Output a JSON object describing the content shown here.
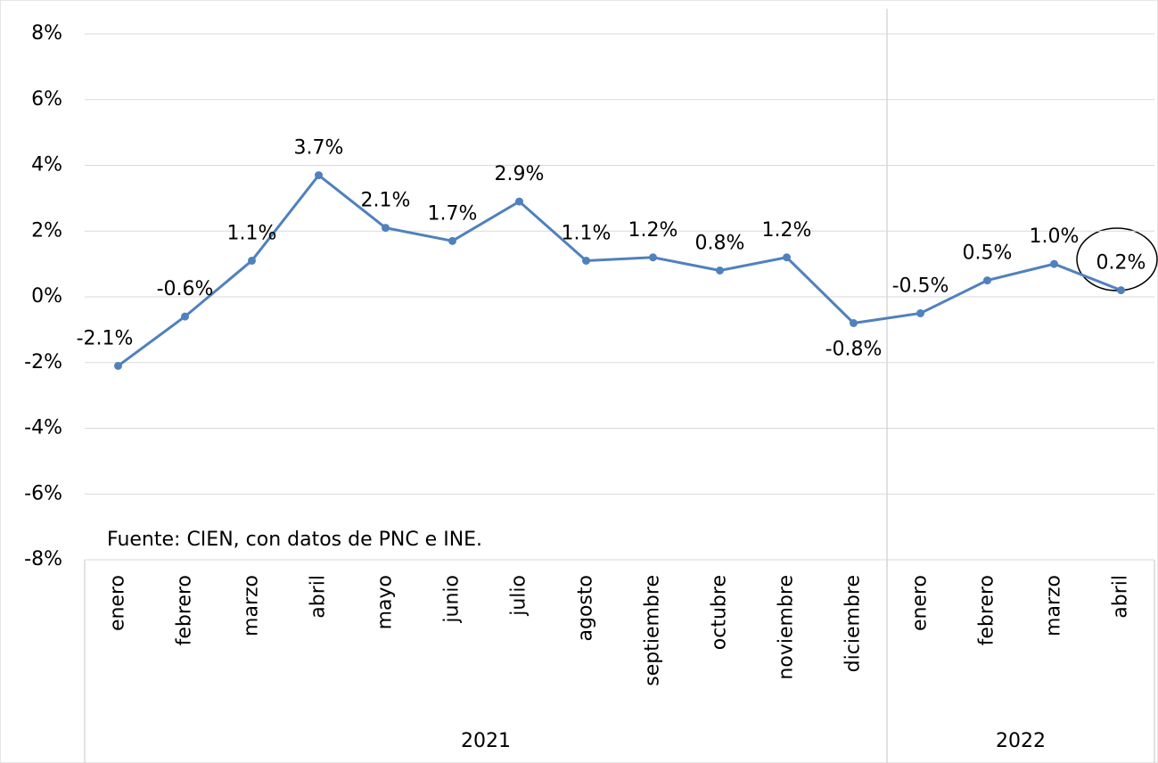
{
  "chart_data": {
    "type": "line",
    "categories": [
      "enero",
      "febrero",
      "marzo",
      "abril",
      "mayo",
      "junio",
      "julio",
      "agosto",
      "septiembre",
      "octubre",
      "noviembre",
      "diciembre",
      "enero",
      "febrero",
      "marzo",
      "abril"
    ],
    "groups": [
      {
        "name": "2021",
        "span": 12
      },
      {
        "name": "2022",
        "span": 4
      }
    ],
    "series": [
      {
        "color": "#4f81bd",
        "values": [
          -2.1,
          -0.6,
          1.1,
          3.7,
          2.1,
          1.7,
          2.9,
          1.1,
          1.2,
          0.8,
          1.2,
          -0.8,
          -0.5,
          0.5,
          1.0,
          0.2
        ],
        "value_labels": [
          "-2.1%",
          "-0.6%",
          "1.1%",
          "3.7%",
          "2.1%",
          "1.7%",
          "2.9%",
          "1.1%",
          "1.2%",
          "0.8%",
          "1.2%",
          "-0.8%",
          "-0.5%",
          "0.5%",
          "1.0%",
          "0.2%"
        ]
      }
    ],
    "ylim": [
      -8,
      8
    ],
    "yticks": [
      {
        "value": -8,
        "label": "-8%"
      },
      {
        "value": -6,
        "label": "-6%"
      },
      {
        "value": -4,
        "label": "-4%"
      },
      {
        "value": -2,
        "label": "-2%"
      },
      {
        "value": 0,
        "label": "0%"
      },
      {
        "value": 2,
        "label": "2%"
      },
      {
        "value": 4,
        "label": "4%"
      },
      {
        "value": 6,
        "label": "6%"
      },
      {
        "value": 8,
        "label": "8%"
      }
    ],
    "grid": true,
    "source": "Fuente: CIEN, con datos de PNC e INE."
  }
}
